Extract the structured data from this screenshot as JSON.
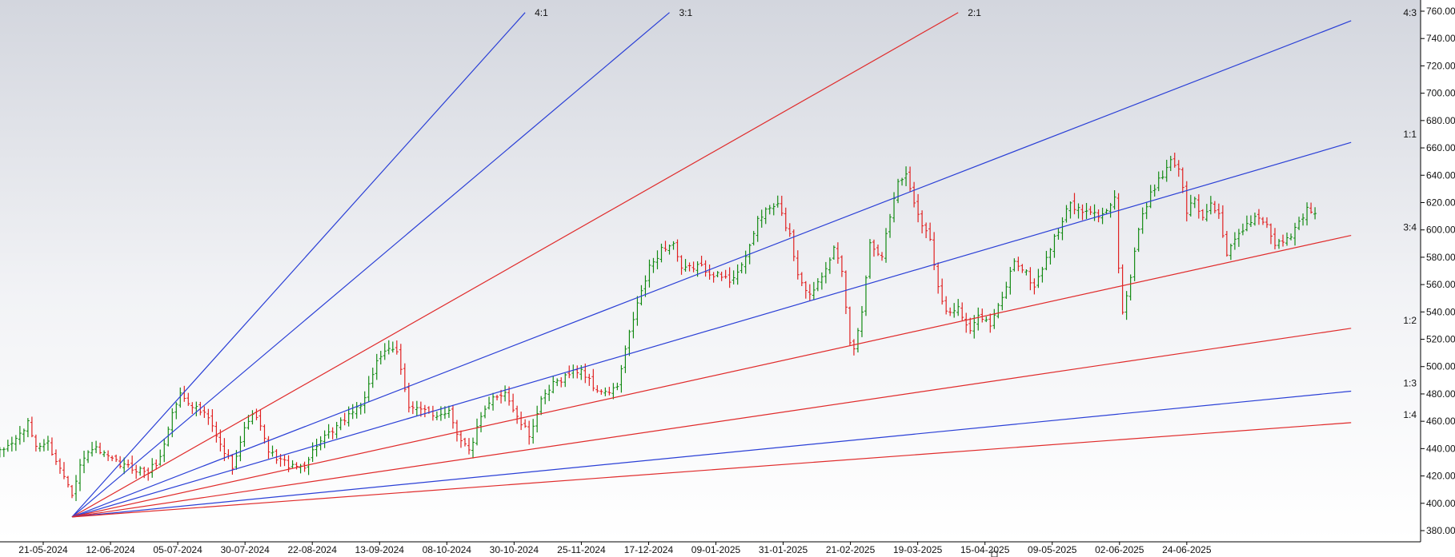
{
  "chart_data": {
    "type": "bar",
    "subtype": "ohlc-price-bars-with-gann-fan",
    "title": "",
    "xlabel": "",
    "ylabel": "",
    "ylim": [
      370,
      762
    ],
    "grid": false,
    "legend": "none",
    "y_ticks": [
      "380.00",
      "400.00",
      "420.00",
      "440.00",
      "460.00",
      "480.00",
      "500.00",
      "520.00",
      "540.00",
      "560.00",
      "580.00",
      "600.00",
      "620.00",
      "640.00",
      "660.00",
      "680.00",
      "700.00",
      "720.00",
      "740.00",
      "760.00"
    ],
    "x_ticks": [
      "21-05-2024",
      "12-06-2024",
      "05-07-2024",
      "30-07-2024",
      "22-08-2024",
      "13-09-2024",
      "08-10-2024",
      "30-10-2024",
      "25-11-2024",
      "17-12-2024",
      "09-01-2025",
      "31-01-2025",
      "21-02-2025",
      "19-03-2025",
      "15-04-2025",
      "09-05-2025",
      "02-06-2025",
      "24-06-2025"
    ],
    "x_range": [
      -2,
      337
    ],
    "fan": {
      "origin": {
        "bar": 18,
        "price": 390
      },
      "lines": [
        {
          "label": "4:1",
          "end_bar": 131,
          "end_price": 759,
          "color": "#2a3fd6"
        },
        {
          "label": "3:1",
          "end_bar": 167,
          "end_price": 759,
          "color": "#2a3fd6"
        },
        {
          "label": "2:1",
          "end_bar": 239,
          "end_price": 759,
          "color": "#e02a2a"
        },
        {
          "label": "4:3",
          "end_bar": 337,
          "end_price": 753,
          "color": "#2a3fd6"
        },
        {
          "label": "1:1",
          "end_bar": 337,
          "end_price": 664,
          "color": "#2a3fd6"
        },
        {
          "label": "3:4",
          "end_bar": 337,
          "end_price": 596,
          "color": "#e02a2a"
        },
        {
          "label": "1:2",
          "end_bar": 337,
          "end_price": 528,
          "color": "#e02a2a"
        },
        {
          "label": "1:3",
          "end_bar": 337,
          "end_price": 482,
          "color": "#2a3fd6"
        },
        {
          "label": "1:4",
          "end_bar": 337,
          "end_price": 459,
          "color": "#e02a2a"
        }
      ]
    },
    "colors": {
      "up": "#138a13",
      "down": "#e02020",
      "axis": "#000000"
    },
    "anchors": [
      {
        "i": 0,
        "c": 437
      },
      {
        "i": 4,
        "c": 447
      },
      {
        "i": 7,
        "c": 458
      },
      {
        "i": 9,
        "c": 442
      },
      {
        "i": 12,
        "c": 444
      },
      {
        "i": 15,
        "c": 425
      },
      {
        "i": 17,
        "c": 415
      },
      {
        "i": 18,
        "c": 408
      },
      {
        "i": 20,
        "c": 428
      },
      {
        "i": 23,
        "c": 441
      },
      {
        "i": 27,
        "c": 433
      },
      {
        "i": 30,
        "c": 428
      },
      {
        "i": 34,
        "c": 425
      },
      {
        "i": 37,
        "c": 423
      },
      {
        "i": 40,
        "c": 433
      },
      {
        "i": 43,
        "c": 466
      },
      {
        "i": 45,
        "c": 480
      },
      {
        "i": 48,
        "c": 472
      },
      {
        "i": 52,
        "c": 462
      },
      {
        "i": 55,
        "c": 442
      },
      {
        "i": 58,
        "c": 428
      },
      {
        "i": 62,
        "c": 462
      },
      {
        "i": 64,
        "c": 464
      },
      {
        "i": 67,
        "c": 437
      },
      {
        "i": 70,
        "c": 432
      },
      {
        "i": 73,
        "c": 426
      },
      {
        "i": 76,
        "c": 428
      },
      {
        "i": 79,
        "c": 443
      },
      {
        "i": 83,
        "c": 452
      },
      {
        "i": 87,
        "c": 465
      },
      {
        "i": 91,
        "c": 475
      },
      {
        "i": 94,
        "c": 505
      },
      {
        "i": 96,
        "c": 512
      },
      {
        "i": 99,
        "c": 510
      },
      {
        "i": 102,
        "c": 472
      },
      {
        "i": 105,
        "c": 468
      },
      {
        "i": 108,
        "c": 464
      },
      {
        "i": 112,
        "c": 468
      },
      {
        "i": 114,
        "c": 452
      },
      {
        "i": 117,
        "c": 438
      },
      {
        "i": 120,
        "c": 462
      },
      {
        "i": 123,
        "c": 477
      },
      {
        "i": 126,
        "c": 482
      },
      {
        "i": 129,
        "c": 462
      },
      {
        "i": 132,
        "c": 450
      },
      {
        "i": 135,
        "c": 474
      },
      {
        "i": 138,
        "c": 487
      },
      {
        "i": 142,
        "c": 495
      },
      {
        "i": 145,
        "c": 498
      },
      {
        "i": 148,
        "c": 485
      },
      {
        "i": 151,
        "c": 480
      },
      {
        "i": 154,
        "c": 485
      },
      {
        "i": 157,
        "c": 524
      },
      {
        "i": 159,
        "c": 546
      },
      {
        "i": 162,
        "c": 572
      },
      {
        "i": 165,
        "c": 586
      },
      {
        "i": 168,
        "c": 590
      },
      {
        "i": 170,
        "c": 570
      },
      {
        "i": 174,
        "c": 574
      },
      {
        "i": 178,
        "c": 568
      },
      {
        "i": 182,
        "c": 563
      },
      {
        "i": 186,
        "c": 578
      },
      {
        "i": 189,
        "c": 608
      },
      {
        "i": 192,
        "c": 616
      },
      {
        "i": 194,
        "c": 618
      },
      {
        "i": 197,
        "c": 596
      },
      {
        "i": 199,
        "c": 568
      },
      {
        "i": 202,
        "c": 552
      },
      {
        "i": 205,
        "c": 568
      },
      {
        "i": 208,
        "c": 586
      },
      {
        "i": 210,
        "c": 568
      },
      {
        "i": 212,
        "c": 518
      },
      {
        "i": 213,
        "c": 512
      },
      {
        "i": 215,
        "c": 542
      },
      {
        "i": 217,
        "c": 590
      },
      {
        "i": 220,
        "c": 582
      },
      {
        "i": 222,
        "c": 610
      },
      {
        "i": 224,
        "c": 636
      },
      {
        "i": 226,
        "c": 640
      },
      {
        "i": 229,
        "c": 612
      },
      {
        "i": 232,
        "c": 592
      },
      {
        "i": 234,
        "c": 560
      },
      {
        "i": 236,
        "c": 540
      },
      {
        "i": 239,
        "c": 542
      },
      {
        "i": 242,
        "c": 524
      },
      {
        "i": 244,
        "c": 540
      },
      {
        "i": 247,
        "c": 530
      },
      {
        "i": 250,
        "c": 550
      },
      {
        "i": 253,
        "c": 578
      },
      {
        "i": 256,
        "c": 568
      },
      {
        "i": 258,
        "c": 558
      },
      {
        "i": 261,
        "c": 580
      },
      {
        "i": 264,
        "c": 600
      },
      {
        "i": 267,
        "c": 620
      },
      {
        "i": 269,
        "c": 614
      },
      {
        "i": 272,
        "c": 612
      },
      {
        "i": 275,
        "c": 610
      },
      {
        "i": 278,
        "c": 626
      },
      {
        "i": 279,
        "c": 572
      },
      {
        "i": 280,
        "c": 540
      },
      {
        "i": 282,
        "c": 565
      },
      {
        "i": 284,
        "c": 600
      },
      {
        "i": 287,
        "c": 628
      },
      {
        "i": 290,
        "c": 640
      },
      {
        "i": 292,
        "c": 652
      },
      {
        "i": 294,
        "c": 645
      },
      {
        "i": 296,
        "c": 614
      },
      {
        "i": 298,
        "c": 622
      },
      {
        "i": 300,
        "c": 608
      },
      {
        "i": 302,
        "c": 620
      },
      {
        "i": 304,
        "c": 612
      },
      {
        "i": 306,
        "c": 580
      },
      {
        "i": 308,
        "c": 592
      },
      {
        "i": 311,
        "c": 604
      },
      {
        "i": 313,
        "c": 610
      },
      {
        "i": 315,
        "c": 608
      },
      {
        "i": 318,
        "c": 590
      },
      {
        "i": 321,
        "c": 592
      },
      {
        "i": 324,
        "c": 605
      },
      {
        "i": 326,
        "c": 616
      },
      {
        "i": 328,
        "c": 612
      }
    ]
  }
}
